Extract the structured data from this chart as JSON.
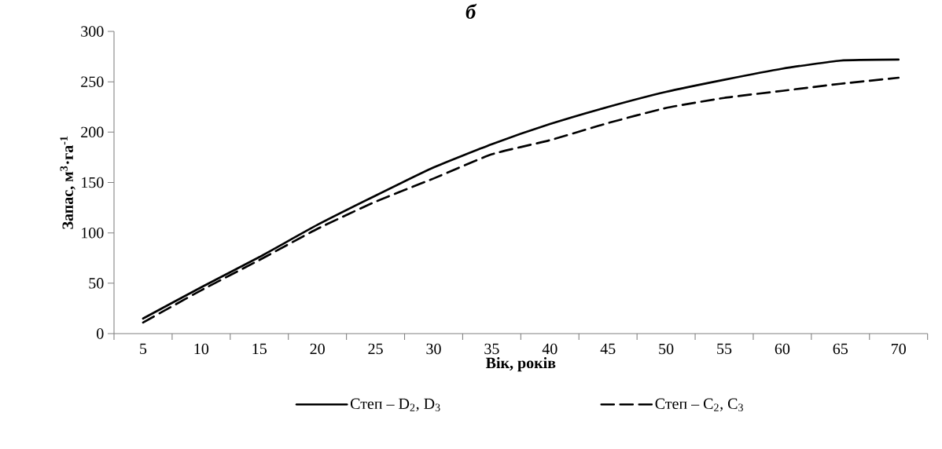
{
  "chart_data": {
    "type": "line",
    "title": "б",
    "xlabel": "Вік, років",
    "ylabel": "Запас, м$^{3}$·га$^{-1}$",
    "categories": [
      "5",
      "10",
      "15",
      "20",
      "25",
      "30",
      "35",
      "40",
      "45",
      "50",
      "55",
      "60",
      "65",
      "70"
    ],
    "series": [
      {
        "name": "Степ –  D$_{2}$, D$_{3}$",
        "color": "#000000",
        "line_style": "solid",
        "values": [
          15,
          46,
          76,
          108,
          137,
          165,
          188,
          208,
          225,
          240,
          252,
          263,
          271,
          272
        ]
      },
      {
        "name": "Степ –  C$_{2}$, C$_{3}$",
        "color": "#000000",
        "line_style": "dashed",
        "values": [
          11,
          43,
          73,
          104,
          131,
          154,
          178,
          192,
          209,
          224,
          234,
          241,
          248,
          254
        ]
      }
    ],
    "ylim": [
      0,
      300
    ],
    "yticks": [
      0,
      50,
      100,
      150,
      200,
      250,
      300
    ],
    "grid": false,
    "legend": "bottom",
    "marker": "none"
  }
}
